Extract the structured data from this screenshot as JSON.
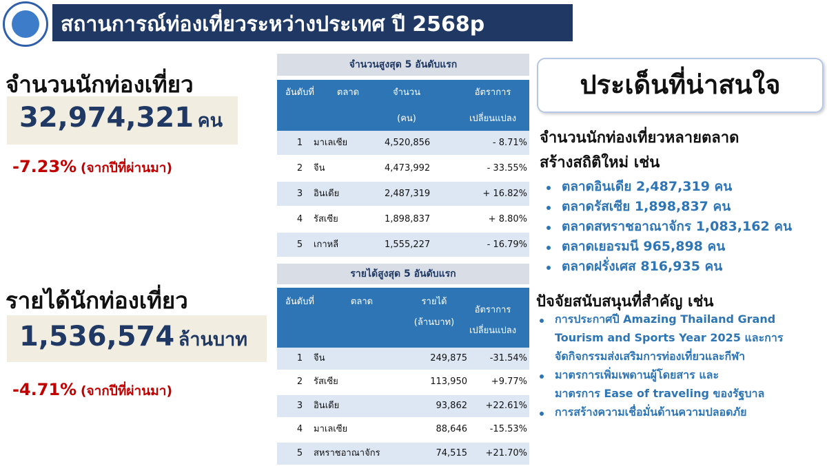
{
  "header": {
    "title": "สถานการณ์ท่องเที่ยวระหว่างประเทศ ปี 2568p"
  },
  "tourists": {
    "label": "จำนวนนักท่องเที่ยว",
    "value": "32,974,321",
    "unit": "คน",
    "change": "-7.23%",
    "note": "(จากปีที่ผ่านมา)"
  },
  "revenue": {
    "label": "รายได้นักท่องเที่ยว",
    "value": "1,536,574",
    "unit": "ล้านบาท",
    "change": "-4.71%",
    "note": "(จากปีที่ผ่านมา)"
  },
  "tables": [
    {
      "title": "จำนวนสูงสุด 5 อันดับแรก",
      "columns": [
        [
          "อันดับที่"
        ],
        [
          "ตลาด"
        ],
        [
          "จำนวน",
          "(คน)"
        ],
        [
          "อัตราการ",
          "เปลี่ยนแปลง"
        ]
      ],
      "rows": [
        [
          "1",
          "มาเลเซีย",
          "4,520,856",
          "- 8.71%"
        ],
        [
          "2",
          "จีน",
          "4,473,992",
          "- 33.55%"
        ],
        [
          "3",
          "อินเดีย",
          "2,487,319",
          "+ 16.82%"
        ],
        [
          "4",
          "รัสเซีย",
          "1,898,837",
          "+ 8.80%"
        ],
        [
          "5",
          "เกาหลี",
          "1,555,227",
          "- 16.79%"
        ]
      ]
    },
    {
      "title": "รายได้สูงสุด 5 อันดับแรก",
      "columns": [
        [
          "อันดับที่"
        ],
        [
          "ตลาด"
        ],
        [
          "รายได้",
          "(ล้านบาท)"
        ],
        [
          "อัตราการ",
          "เปลี่ยนแปลง"
        ]
      ],
      "rows": [
        [
          "1",
          "จีน",
          "249,875",
          "-31.54%"
        ],
        [
          "2",
          "รัสเซีย",
          "113,950",
          "+9.77%"
        ],
        [
          "3",
          "อินเดีย",
          "93,862",
          "+22.61%"
        ],
        [
          "4",
          "มาเลเซีย",
          "88,646",
          "-15.53%"
        ],
        [
          "5",
          "สหราชอาณาจักร",
          "74,515",
          "+21.70%"
        ]
      ]
    }
  ],
  "highlights": {
    "title": "ประเด็นที่น่าสนใจ",
    "records": {
      "lines": [
        "จำนวนนักท่องเที่ยวหลายตลาด",
        "สร้างสถิติใหม่ เช่น"
      ],
      "bullets": [
        "ตลาดอินเดีย 2,487,319 คน",
        "ตลาดรัสเซีย 1,898,837 คน",
        "ตลาดสหราชอาณาจักร 1,083,162 คน",
        "ตลาดเยอรมนี 965,898 คน",
        "ตลาดฝรั่งเศส 816,935 คน"
      ]
    },
    "factors": {
      "title": "ปัจจัยสนับสนุนที่สำคัญ เช่น",
      "bullets": [
        [
          "การประกาศปี Amazing Thailand Grand",
          "Tourism and Sports Year 2025 และการ",
          "จัดกิจกรรมส่งเสริมการท่องเที่ยวและกีฬา"
        ],
        [
          "มาตรการเพิ่มเพดานผู้โดยสาร และ",
          "มาตรการ Ease of traveling ของรัฐบาล"
        ],
        [
          "การสร้างความเชื่อมั่นด้านความปลอดภัย"
        ]
      ]
    }
  }
}
